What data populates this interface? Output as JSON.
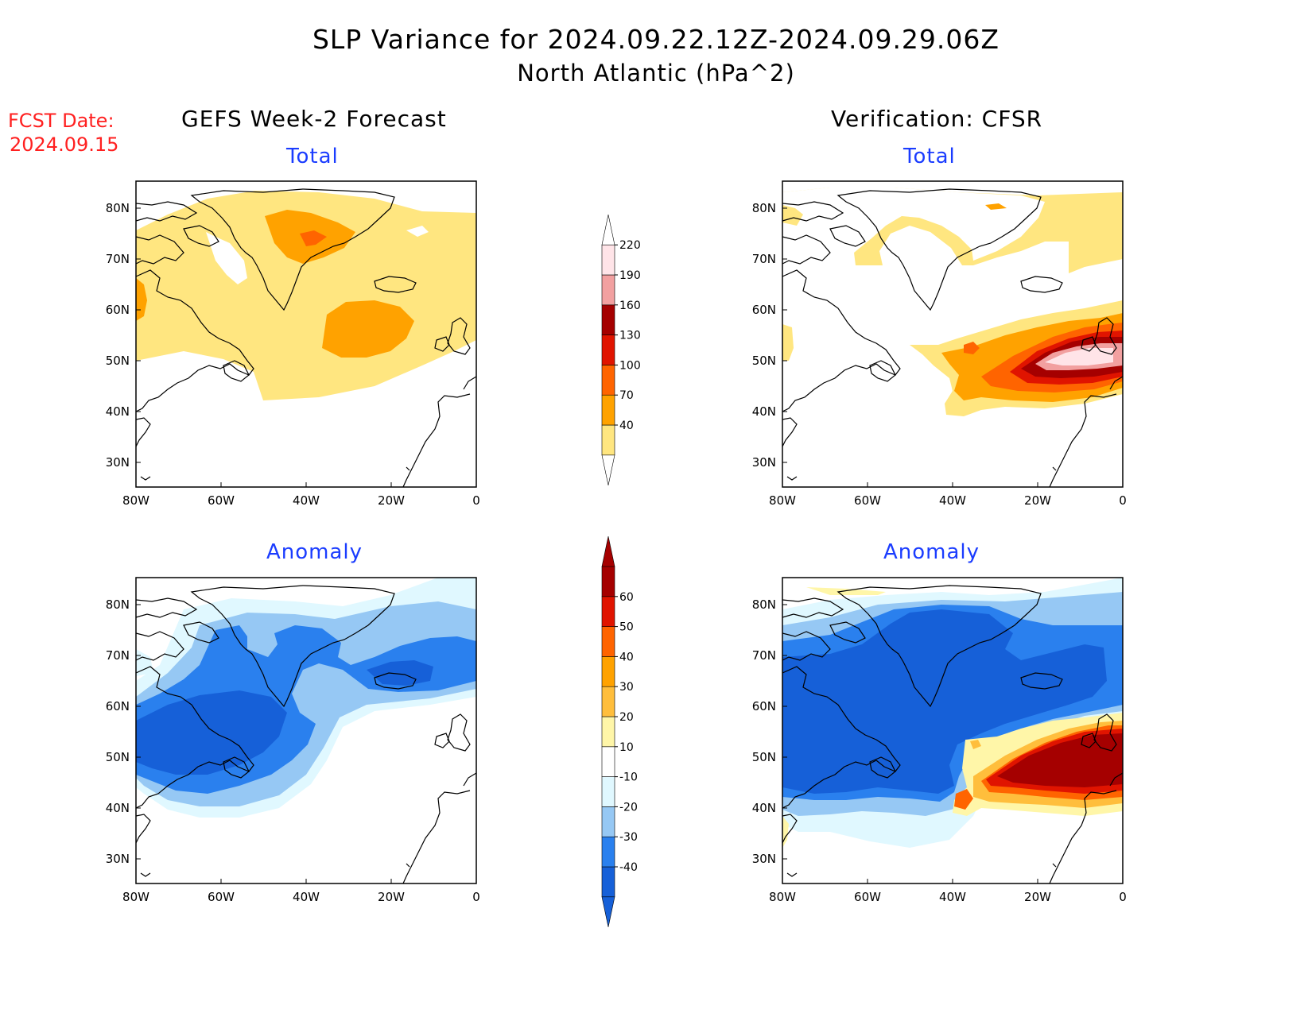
{
  "title": {
    "line1": "SLP Variance for 2024.09.22.12Z-2024.09.29.06Z",
    "line2": "North Atlantic (hPa^2)"
  },
  "fcst_date": {
    "label": "FCST Date:",
    "value": "2024.09.15"
  },
  "columns": {
    "left": "GEFS Week-2 Forecast",
    "right": "Verification: CFSR"
  },
  "rows": {
    "top": "Total",
    "bottom": "Anomaly"
  },
  "axes": {
    "lon_labels": [
      "80W",
      "60W",
      "40W",
      "20W",
      "0"
    ],
    "lat_labels": [
      "80N",
      "70N",
      "60N",
      "50N",
      "40N",
      "30N"
    ]
  },
  "colorbars": {
    "total": {
      "levels": [
        "40",
        "70",
        "100",
        "130",
        "160",
        "190",
        "220"
      ],
      "colors": [
        "#ffe680",
        "#ffa200",
        "#ff6400",
        "#e01400",
        "#a50000",
        "#f2a0a0",
        "#ffe4e8"
      ]
    },
    "anomaly": {
      "levels": [
        "-40",
        "-30",
        "-20",
        "-10",
        "10",
        "20",
        "30",
        "40",
        "50",
        "60"
      ],
      "colors": [
        "#1660d8",
        "#2a80ee",
        "#96c8f4",
        "#e0f8ff",
        "#ffffff",
        "#fff6a8",
        "#ffbe3c",
        "#ffa200",
        "#ff6400",
        "#e01400",
        "#a50000"
      ]
    }
  },
  "colors": {
    "title": "#000000",
    "fcst_date": "#ff2020",
    "panel_subtitle": "#1a3cff",
    "coastline": "#000000"
  }
}
